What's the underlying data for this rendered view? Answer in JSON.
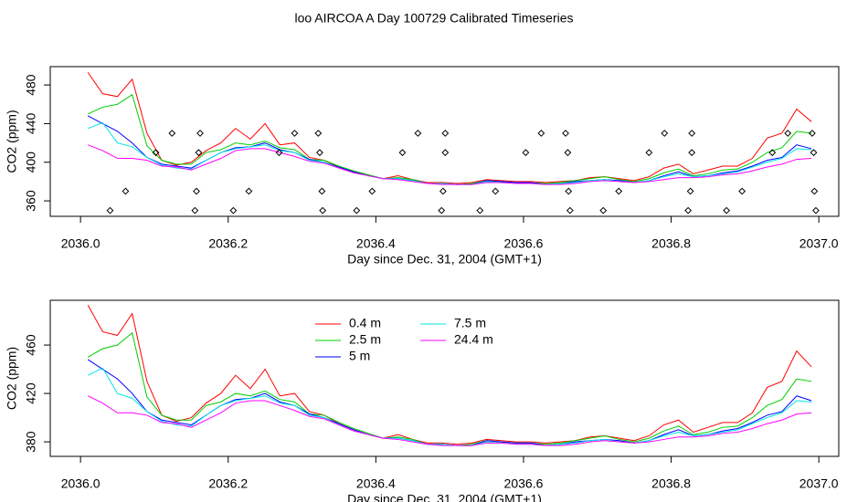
{
  "title": "loo AIRCOA A  Day 100729  Calibrated Timeseries",
  "chart_data": [
    {
      "type": "line",
      "xlabel": "Day since Dec. 31, 2004 (GMT+1)",
      "ylabel": "CO2 (ppm)",
      "xlim": [
        2035.959,
        2037.027
      ],
      "ylim": [
        344,
        499
      ],
      "xticks": [
        {
          "value": 2036,
          "label": "2036.0"
        },
        2036.2,
        2036.4,
        2036.6,
        2036.8,
        {
          "value": 2037,
          "label": "2037.0"
        }
      ],
      "yticks": [
        360,
        400,
        440,
        480
      ],
      "x": [
        2036.01,
        2036.03,
        2036.05,
        2036.07,
        2036.09,
        2036.11,
        2036.13,
        2036.15,
        2036.17,
        2036.19,
        2036.21,
        2036.23,
        2036.25,
        2036.27,
        2036.29,
        2036.31,
        2036.33,
        2036.35,
        2036.37,
        2036.39,
        2036.41,
        2036.43,
        2036.45,
        2036.47,
        2036.49,
        2036.51,
        2036.53,
        2036.55,
        2036.57,
        2036.59,
        2036.61,
        2036.63,
        2036.65,
        2036.67,
        2036.69,
        2036.71,
        2036.73,
        2036.75,
        2036.77,
        2036.79,
        2036.81,
        2036.83,
        2036.85,
        2036.87,
        2036.89,
        2036.91,
        2036.93,
        2036.95,
        2036.97,
        2036.99
      ],
      "series": [
        {
          "name": "0.4 m",
          "color": "#ff0000",
          "values": [
            493,
            471,
            468,
            486,
            430,
            402,
            397,
            400,
            412,
            420,
            435,
            424,
            440,
            418,
            420,
            405,
            402,
            395,
            390,
            386,
            383,
            386,
            382,
            379,
            379,
            378,
            379,
            382,
            381,
            380,
            380,
            379,
            380,
            381,
            384,
            385,
            383,
            381,
            385,
            394,
            398,
            388,
            392,
            396,
            396,
            404,
            425,
            430,
            455,
            442
          ]
        },
        {
          "name": "2.5 m",
          "color": "#00cd00",
          "values": [
            450,
            457,
            460,
            470,
            417,
            402,
            398,
            398,
            410,
            413,
            420,
            418,
            422,
            415,
            413,
            403,
            402,
            396,
            391,
            387,
            383,
            384,
            382,
            378,
            378,
            377,
            378,
            381,
            380,
            379,
            379,
            378,
            379,
            381,
            383,
            385,
            382,
            380,
            383,
            389,
            393,
            386,
            388,
            392,
            393,
            400,
            410,
            415,
            432,
            430
          ]
        },
        {
          "name": "5 m",
          "color": "#0000ff",
          "values": [
            448,
            440,
            432,
            420,
            405,
            398,
            396,
            394,
            402,
            410,
            415,
            416,
            420,
            413,
            410,
            403,
            400,
            395,
            390,
            386,
            383,
            383,
            381,
            378,
            378,
            377,
            377,
            381,
            380,
            379,
            379,
            377,
            378,
            380,
            381,
            382,
            381,
            379,
            381,
            386,
            390,
            385,
            386,
            389,
            391,
            396,
            402,
            405,
            418,
            414
          ]
        },
        {
          "name": "7.5 m",
          "color": "#00e5e5",
          "values": [
            435,
            441,
            420,
            416,
            405,
            397,
            394,
            393,
            402,
            410,
            414,
            416,
            418,
            412,
            410,
            402,
            400,
            394,
            389,
            386,
            383,
            383,
            381,
            378,
            378,
            377,
            377,
            380,
            379,
            378,
            378,
            377,
            378,
            379,
            381,
            382,
            380,
            379,
            381,
            385,
            388,
            385,
            386,
            388,
            390,
            395,
            400,
            404,
            414,
            413
          ]
        },
        {
          "name": "24.4 m",
          "color": "#ff00ff",
          "values": [
            418,
            412,
            404,
            404,
            402,
            396,
            395,
            392,
            398,
            404,
            412,
            414,
            414,
            410,
            406,
            401,
            399,
            394,
            389,
            386,
            383,
            382,
            380,
            378,
            377,
            377,
            377,
            379,
            379,
            378,
            378,
            377,
            377,
            378,
            380,
            381,
            380,
            379,
            380,
            382,
            384,
            384,
            385,
            387,
            388,
            391,
            395,
            398,
            403,
            404
          ]
        }
      ],
      "points": {
        "color": "#000000",
        "x": [
          2036.04,
          2036.061,
          2036.102,
          2036.124,
          2036.155,
          2036.157,
          2036.16,
          2036.162,
          2036.207,
          2036.228,
          2036.269,
          2036.29,
          2036.322,
          2036.324,
          2036.327,
          2036.328,
          2036.374,
          2036.395,
          2036.436,
          2036.457,
          2036.489,
          2036.491,
          2036.494,
          2036.494,
          2036.541,
          2036.562,
          2036.603,
          2036.624,
          2036.657,
          2036.66,
          2036.661,
          2036.663,
          2036.708,
          2036.729,
          2036.77,
          2036.791,
          2036.823,
          2036.826,
          2036.828,
          2036.828,
          2036.875,
          2036.896,
          2036.937,
          2036.958,
          2036.991,
          2036.993,
          2036.994,
          2036.996
        ],
        "y": [
          350,
          370,
          410,
          430,
          350,
          370,
          410,
          430,
          350,
          370,
          410,
          430,
          430,
          410,
          370,
          350,
          350,
          370,
          410,
          430,
          350,
          370,
          410,
          430,
          350,
          370,
          410,
          430,
          430,
          410,
          370,
          350,
          350,
          370,
          410,
          430,
          350,
          370,
          410,
          430,
          350,
          370,
          410,
          430,
          430,
          410,
          370,
          350
        ]
      }
    },
    {
      "type": "line",
      "xlabel": "Day since Dec. 31, 2004 (GMT+1)",
      "ylabel": "CO2 (ppm)",
      "xlim": [
        2035.959,
        2037.027
      ],
      "ylim": [
        368,
        497
      ],
      "xticks": [
        {
          "value": 2036,
          "label": "2036.0"
        },
        2036.2,
        2036.4,
        2036.6,
        2036.8,
        {
          "value": 2037,
          "label": "2037.0"
        }
      ],
      "yticks": [
        380,
        420,
        460
      ],
      "legend": "top",
      "x": [
        2036.01,
        2036.03,
        2036.05,
        2036.07,
        2036.09,
        2036.11,
        2036.13,
        2036.15,
        2036.17,
        2036.19,
        2036.21,
        2036.23,
        2036.25,
        2036.27,
        2036.29,
        2036.31,
        2036.33,
        2036.35,
        2036.37,
        2036.39,
        2036.41,
        2036.43,
        2036.45,
        2036.47,
        2036.49,
        2036.51,
        2036.53,
        2036.55,
        2036.57,
        2036.59,
        2036.61,
        2036.63,
        2036.65,
        2036.67,
        2036.69,
        2036.71,
        2036.73,
        2036.75,
        2036.77,
        2036.79,
        2036.81,
        2036.83,
        2036.85,
        2036.87,
        2036.89,
        2036.91,
        2036.93,
        2036.95,
        2036.97,
        2036.99
      ],
      "series": [
        {
          "name": "0.4 m",
          "color": "#ff0000",
          "values": [
            493,
            471,
            468,
            486,
            430,
            402,
            397,
            400,
            412,
            420,
            435,
            424,
            440,
            418,
            420,
            405,
            402,
            395,
            390,
            386,
            383,
            386,
            382,
            379,
            379,
            378,
            379,
            382,
            381,
            380,
            380,
            379,
            380,
            381,
            384,
            385,
            383,
            381,
            385,
            394,
            398,
            388,
            392,
            396,
            396,
            404,
            425,
            430,
            455,
            442
          ]
        },
        {
          "name": "2.5 m",
          "color": "#00cd00",
          "values": [
            450,
            457,
            460,
            470,
            417,
            402,
            398,
            398,
            410,
            413,
            420,
            418,
            422,
            415,
            413,
            403,
            402,
            396,
            391,
            387,
            383,
            384,
            382,
            378,
            378,
            377,
            378,
            381,
            380,
            379,
            379,
            378,
            379,
            381,
            383,
            385,
            382,
            380,
            383,
            389,
            393,
            386,
            388,
            392,
            393,
            400,
            410,
            415,
            432,
            430
          ]
        },
        {
          "name": "5 m",
          "color": "#0000ff",
          "values": [
            448,
            440,
            432,
            420,
            405,
            398,
            396,
            394,
            402,
            410,
            415,
            416,
            420,
            413,
            410,
            403,
            400,
            395,
            390,
            386,
            383,
            383,
            381,
            378,
            378,
            377,
            377,
            381,
            380,
            379,
            379,
            377,
            378,
            380,
            381,
            382,
            381,
            379,
            381,
            386,
            390,
            385,
            386,
            389,
            391,
            396,
            402,
            405,
            418,
            414
          ]
        },
        {
          "name": "7.5 m",
          "color": "#00e5e5",
          "values": [
            435,
            441,
            420,
            416,
            405,
            397,
            394,
            393,
            402,
            410,
            414,
            416,
            418,
            412,
            410,
            402,
            400,
            394,
            389,
            386,
            383,
            383,
            381,
            378,
            378,
            377,
            377,
            380,
            379,
            378,
            378,
            377,
            378,
            379,
            381,
            382,
            380,
            379,
            381,
            385,
            388,
            385,
            386,
            388,
            390,
            395,
            400,
            404,
            414,
            413
          ]
        },
        {
          "name": "24.4 m",
          "color": "#ff00ff",
          "values": [
            418,
            412,
            404,
            404,
            402,
            396,
            395,
            392,
            398,
            404,
            412,
            414,
            414,
            410,
            406,
            401,
            399,
            394,
            389,
            386,
            383,
            382,
            380,
            378,
            377,
            377,
            377,
            379,
            379,
            378,
            378,
            377,
            377,
            378,
            380,
            381,
            380,
            379,
            380,
            382,
            384,
            384,
            385,
            387,
            388,
            391,
            395,
            398,
            403,
            404
          ]
        }
      ]
    }
  ]
}
